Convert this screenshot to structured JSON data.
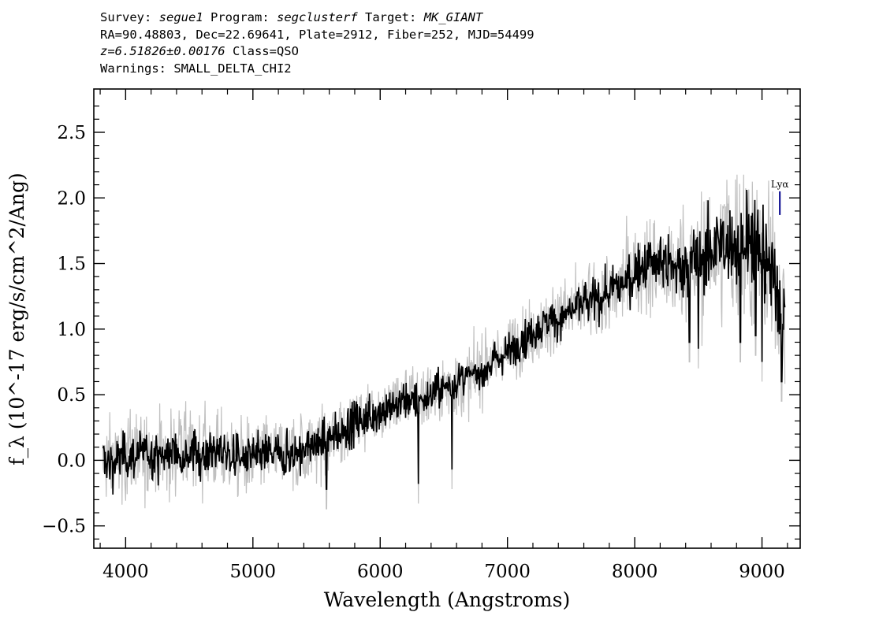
{
  "header": {
    "survey_label": "Survey:",
    "survey": "segue1",
    "program_label": "Program:",
    "program": "segclusterf",
    "target_label": "Target:",
    "target": "MK_GIANT",
    "line2": "RA=90.48803, Dec=22.69641, Plate=2912, Fiber=252, MJD=54499",
    "redshift": "z=6.51826±0.00176",
    "class": "Class=QSO",
    "warnings": "Warnings: SMALL_DELTA_CHI2"
  },
  "chart_data": {
    "type": "line",
    "xlabel": "Wavelength (Angstroms)",
    "ylabel": "f_λ (10^-17 erg/s/cm^2/Ang)",
    "xlim": [
      3750,
      9300
    ],
    "ylim": [
      -0.67,
      2.83
    ],
    "xticks": [
      4000,
      5000,
      6000,
      7000,
      8000,
      9000
    ],
    "yticks": [
      -0.5,
      0.0,
      0.5,
      1.0,
      1.5,
      2.0,
      2.5
    ],
    "ytick_labels": [
      "−0.5",
      "0.0",
      "0.5",
      "1.0",
      "1.5",
      "2.0",
      "2.5"
    ],
    "grid": false,
    "legend": "none",
    "annotations": [
      {
        "text": "Lyα",
        "x": 9140,
        "y_top": 2.05,
        "y_bottom": 1.87,
        "color": "#00008b"
      }
    ],
    "series": [
      {
        "role": "flux",
        "color": "#000000",
        "x": [
          3820,
          3900,
          4000,
          4100,
          4200,
          4300,
          4400,
          4500,
          4600,
          4700,
          4800,
          4900,
          5000,
          5100,
          5200,
          5300,
          5400,
          5500,
          5600,
          5700,
          5800,
          5900,
          6000,
          6100,
          6200,
          6300,
          6400,
          6500,
          6600,
          6700,
          6800,
          6900,
          7000,
          7100,
          7200,
          7300,
          7400,
          7500,
          7600,
          7700,
          7800,
          7900,
          8000,
          8100,
          8200,
          8300,
          8400,
          8500,
          8600,
          8700,
          8800,
          8900,
          9000,
          9050,
          9100,
          9150,
          9180
        ],
        "y": [
          0.0,
          -0.02,
          0.03,
          0.04,
          0.05,
          0.03,
          0.07,
          0.06,
          0.05,
          0.07,
          0.05,
          0.02,
          0.02,
          0.05,
          0.05,
          0.04,
          0.08,
          0.13,
          0.16,
          0.23,
          0.29,
          0.33,
          0.38,
          0.41,
          0.47,
          0.45,
          0.5,
          0.55,
          0.6,
          0.63,
          0.68,
          0.76,
          0.83,
          0.9,
          0.97,
          1.04,
          1.08,
          1.14,
          1.2,
          1.22,
          1.27,
          1.34,
          1.44,
          1.5,
          1.5,
          1.45,
          1.5,
          1.5,
          1.6,
          1.64,
          1.62,
          1.7,
          1.55,
          1.48,
          1.35,
          1.2,
          1.05
        ],
        "dips": [
          [
            5577,
            -0.22
          ],
          [
            6300,
            -0.18
          ],
          [
            6564,
            -0.07
          ],
          [
            8430,
            0.9
          ],
          [
            8500,
            0.85
          ],
          [
            8830,
            0.9
          ],
          [
            8950,
            0.95
          ],
          [
            9000,
            0.75
          ],
          [
            9155,
            0.6
          ]
        ]
      },
      {
        "role": "error-band",
        "color": "#c0c0c0",
        "x": [
          3820,
          4500,
          5000,
          5500,
          6000,
          6500,
          7000,
          7500,
          8000,
          8300,
          8500,
          8700,
          8900,
          9000,
          9100,
          9180
        ],
        "y": [
          0.17,
          0.16,
          0.15,
          0.15,
          0.14,
          0.13,
          0.13,
          0.14,
          0.18,
          0.22,
          0.26,
          0.3,
          0.35,
          0.35,
          0.3,
          0.35
        ]
      }
    ]
  }
}
